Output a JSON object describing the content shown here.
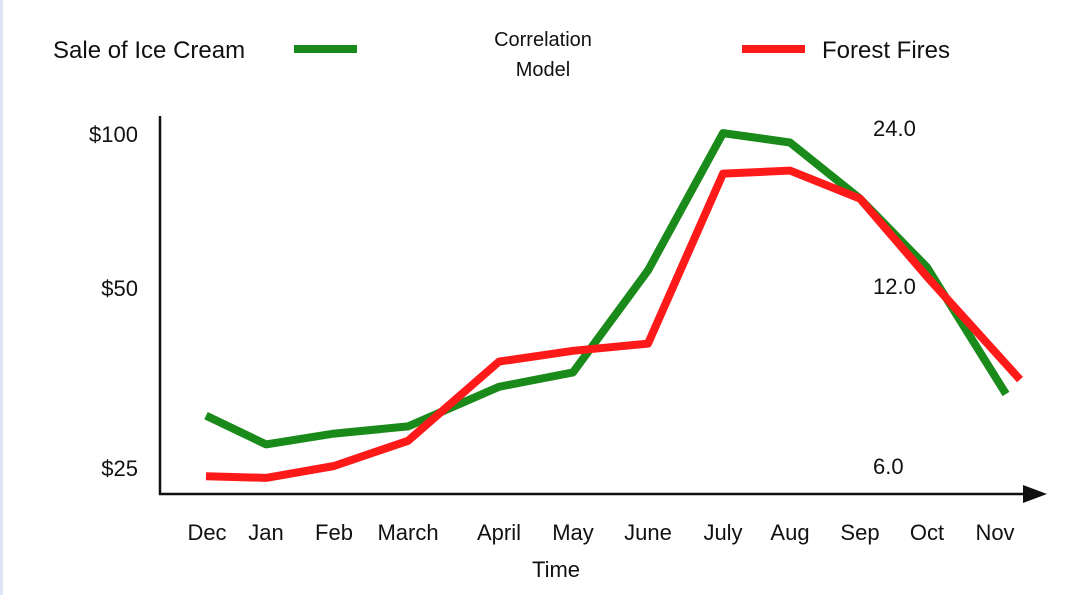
{
  "chart_data": {
    "type": "line",
    "title": "Correlation Model",
    "title_lines": [
      "Correlation",
      "Model"
    ],
    "xlabel": "Time",
    "categories": [
      "Dec",
      "Jan",
      "Feb",
      "March",
      "April",
      "May",
      "June",
      "July",
      "Aug",
      "Sep",
      "Oct",
      "Nov"
    ],
    "y_ticks_left": [
      "$100",
      "$50",
      "$25"
    ],
    "y_ticks_right": [
      "24.0",
      "12.0",
      "6.0"
    ],
    "series": [
      {
        "name": "Sale of Ice Cream",
        "color": "#1a8a1a",
        "values": [
          32,
          28,
          29.5,
          30.5,
          36,
          38,
          55,
          99,
          96,
          78,
          56,
          35
        ]
      },
      {
        "name": "Forest Fires",
        "color": "#ff1a1a",
        "values": [
          22,
          21.5,
          25,
          28.5,
          39.5,
          41,
          42,
          86,
          87,
          78,
          53,
          37
        ]
      }
    ],
    "legend": [
      {
        "label": "Sale of Ice Cream",
        "position": "top-left"
      },
      {
        "label": "Forest Fires",
        "position": "top-right"
      }
    ],
    "legend_placement": "top",
    "grid": false
  }
}
